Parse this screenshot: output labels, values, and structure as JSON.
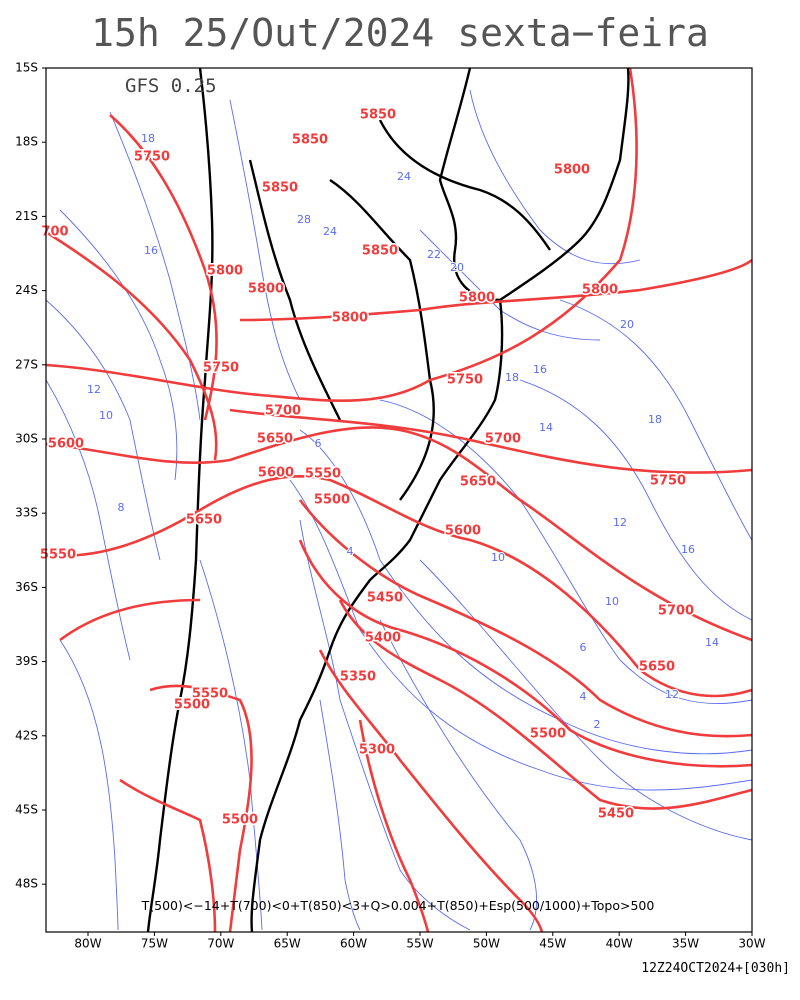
{
  "title": "15h 25/Out/2024 sexta−feira",
  "model": "GFS 0.25",
  "caption": "T(500)<−14+T(700)<0+T(850)<3+Q>0.004+T(850)+Esp(500/1000)+Topo>500",
  "footer": "12Z24OCT2024+[030h]",
  "lat_labels": [
    "15S",
    "18S",
    "21S",
    "24S",
    "27S",
    "30S",
    "33S",
    "36S",
    "39S",
    "42S",
    "45S",
    "48S"
  ],
  "lon_labels": [
    "80W",
    "75W",
    "70W",
    "65W",
    "60W",
    "55W",
    "50W",
    "45W",
    "40W",
    "35W",
    "30W"
  ],
  "height_labels": [
    "5850",
    "5750",
    "5850",
    "5850",
    "5800",
    "700",
    "5850",
    "5800",
    "5800",
    "5800",
    "5800",
    "5800",
    "5750",
    "5750",
    "5700",
    "5700",
    "5650",
    "5600",
    "5600",
    "5550",
    "5650",
    "5500",
    "5650",
    "5600",
    "5550",
    "5450",
    "5700",
    "5400",
    "5650",
    "5350",
    "5550",
    "5500",
    "5500",
    "5300",
    "5450",
    "5500",
    "5750"
  ],
  "thickness_labels": [
    "18",
    "16",
    "12",
    "10",
    "8",
    "16",
    "18",
    "14",
    "18",
    "20",
    "12",
    "16",
    "10",
    "10",
    "14",
    "12",
    "6",
    "4",
    "2",
    "6",
    "4",
    "24",
    "22",
    "20",
    "28",
    "24"
  ]
}
